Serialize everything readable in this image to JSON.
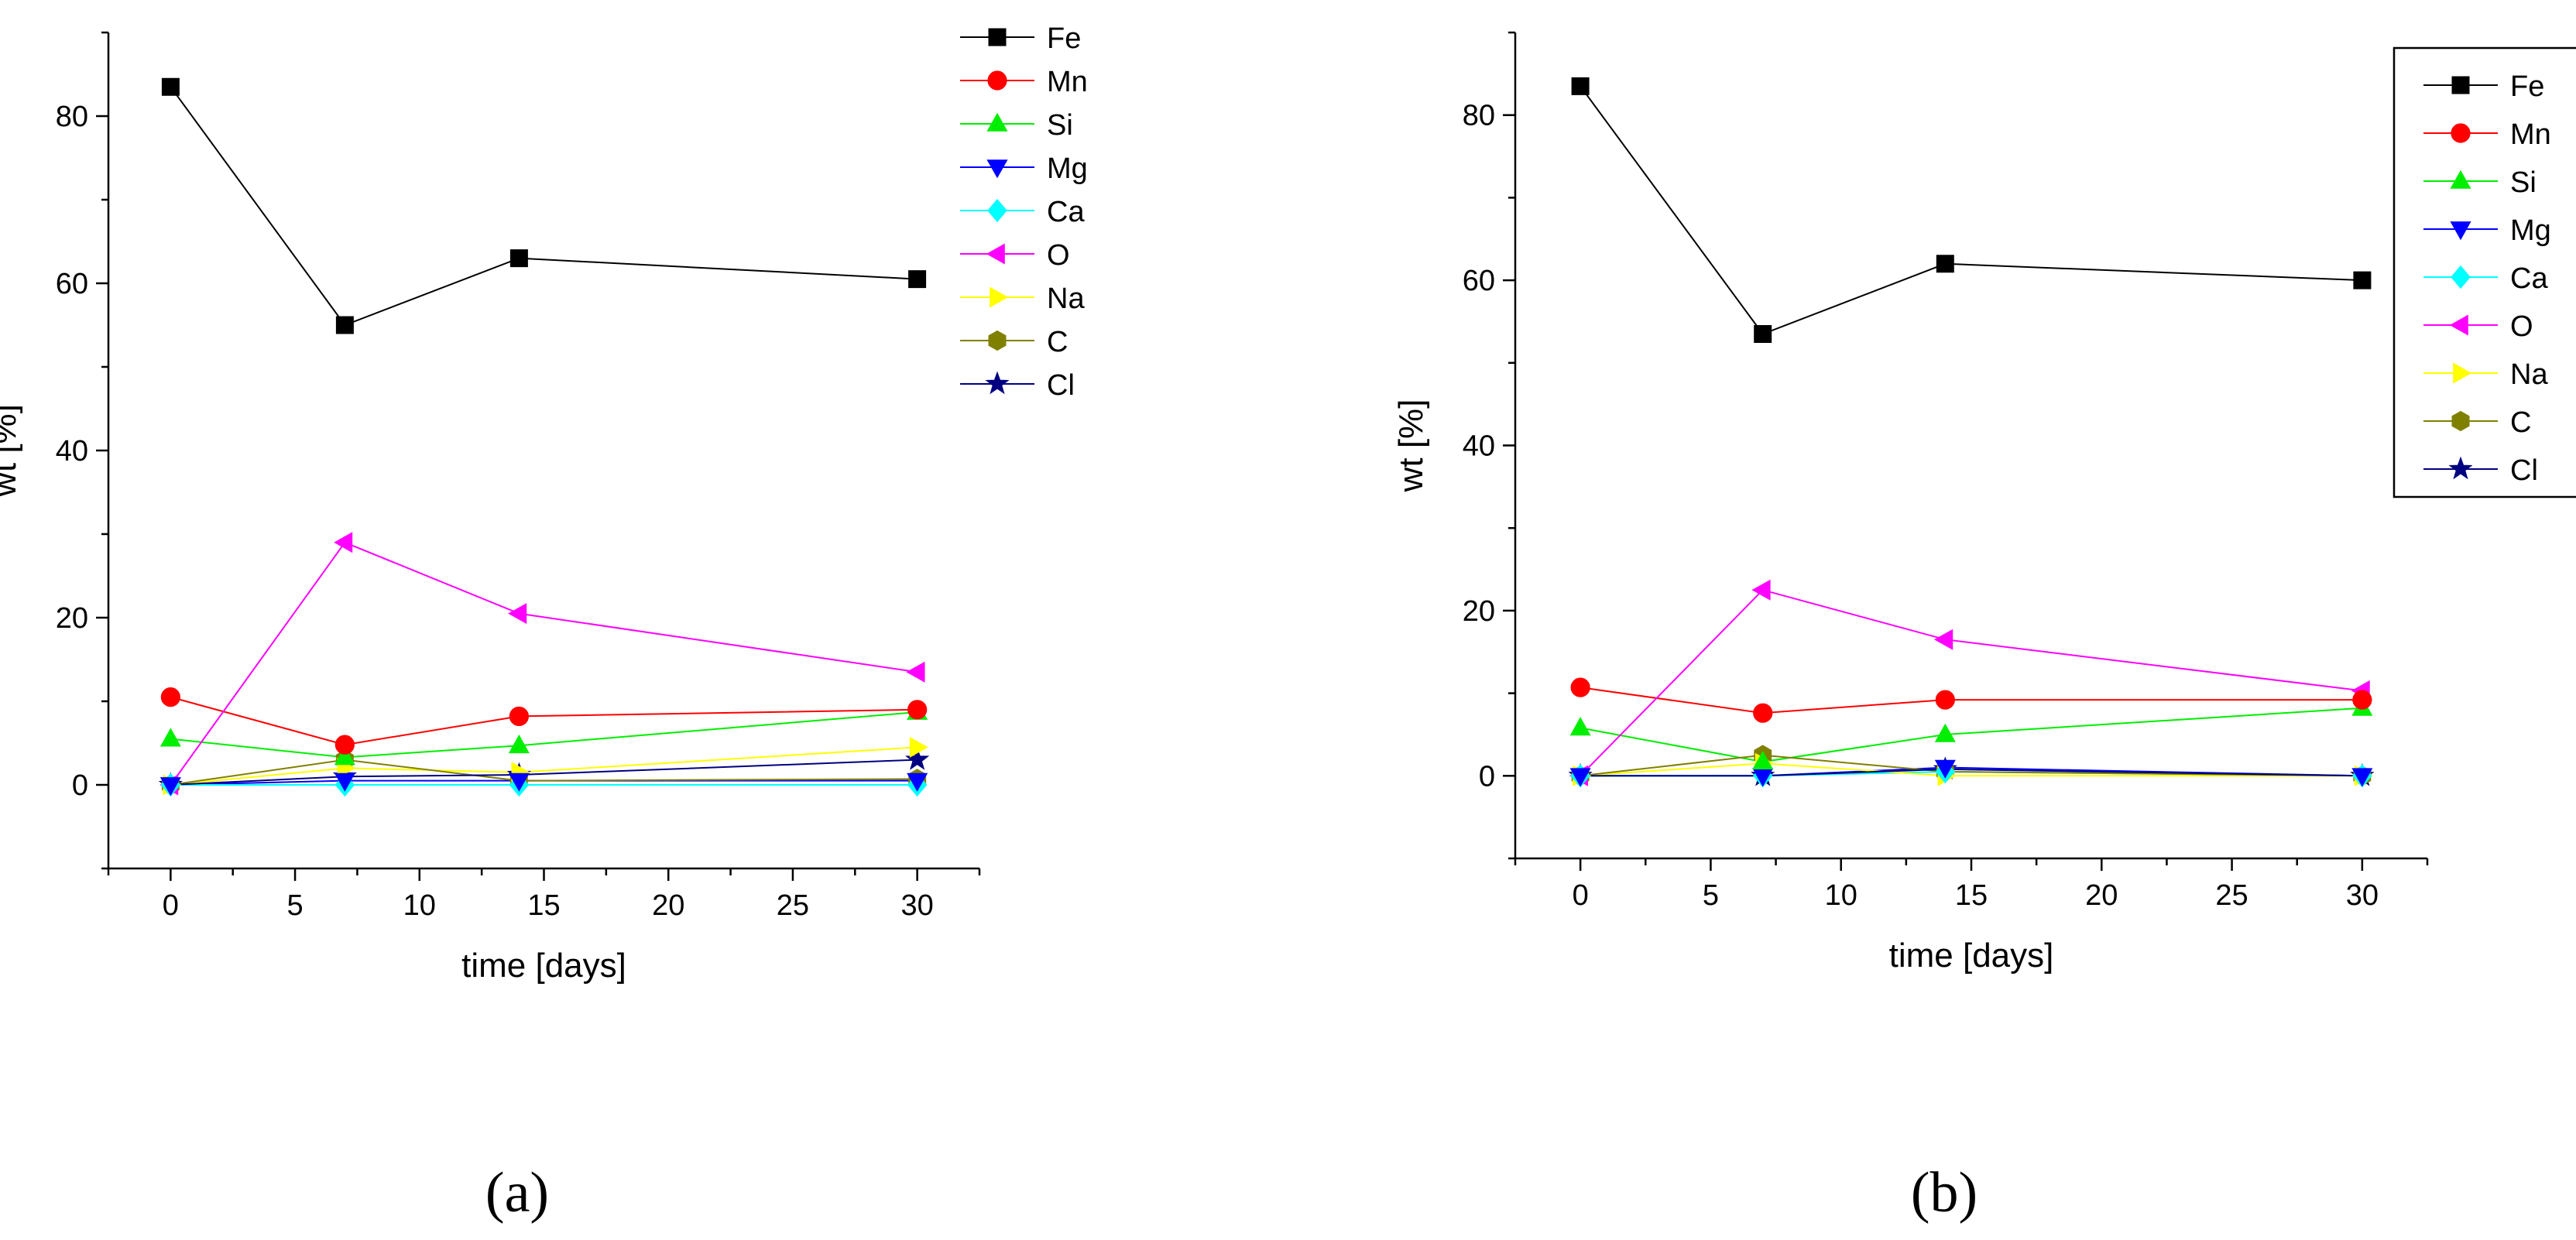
{
  "figure": {
    "panel_labels": [
      "(a)",
      "(b)"
    ]
  },
  "chart_data": [
    {
      "type": "line",
      "panel": "(a)",
      "xlabel": "time [days]",
      "ylabel": "wt [%]",
      "xlim": [
        -2.5,
        32.5
      ],
      "ylim": [
        -10,
        90
      ],
      "xticks": [
        0,
        5,
        10,
        15,
        20,
        25,
        30
      ],
      "yticks": [
        0,
        20,
        40,
        60,
        80
      ],
      "x": [
        0,
        7,
        14,
        30
      ],
      "legend_frame": false,
      "legend_position": "top-right",
      "series": [
        {
          "name": "Fe",
          "color": "#000000",
          "marker": "square",
          "values": [
            83.5,
            55,
            63,
            60.5
          ]
        },
        {
          "name": "Mn",
          "color": "#ff0000",
          "marker": "circle",
          "values": [
            10.5,
            4.8,
            8.2,
            9
          ]
        },
        {
          "name": "Si",
          "color": "#00ee00",
          "marker": "triangle-up",
          "values": [
            5.5,
            3.3,
            4.7,
            8.7
          ]
        },
        {
          "name": "Mg",
          "color": "#0000ff",
          "marker": "triangle-down",
          "values": [
            0,
            0.5,
            0.5,
            0.5
          ]
        },
        {
          "name": "Ca",
          "color": "#00ffff",
          "marker": "diamond",
          "values": [
            0,
            0,
            0,
            0
          ]
        },
        {
          "name": "O",
          "color": "#ff00ff",
          "marker": "triangle-left",
          "values": [
            0,
            29,
            20.5,
            13.5
          ]
        },
        {
          "name": "Na",
          "color": "#ffff00",
          "marker": "triangle-right",
          "values": [
            0,
            2,
            1.5,
            4.5
          ]
        },
        {
          "name": "C",
          "color": "#808000",
          "marker": "hexagon",
          "values": [
            0,
            3,
            0.5,
            0.7
          ]
        },
        {
          "name": "Cl",
          "color": "#000080",
          "marker": "star",
          "values": [
            0,
            1,
            1.2,
            3
          ]
        }
      ]
    },
    {
      "type": "line",
      "panel": "(b)",
      "xlabel": "time [days]",
      "ylabel": "wt [%]",
      "xlim": [
        -2.5,
        32.5
      ],
      "ylim": [
        -10,
        90
      ],
      "xticks": [
        0,
        5,
        10,
        15,
        20,
        25,
        30
      ],
      "yticks": [
        0,
        20,
        40,
        60,
        80
      ],
      "x": [
        0,
        7,
        14,
        30
      ],
      "legend_frame": true,
      "legend_position": "top-right",
      "series": [
        {
          "name": "Fe",
          "color": "#000000",
          "marker": "square",
          "values": [
            83.5,
            53.5,
            62,
            60
          ]
        },
        {
          "name": "Mn",
          "color": "#ff0000",
          "marker": "circle",
          "values": [
            10.7,
            7.6,
            9.2,
            9.2
          ]
        },
        {
          "name": "Si",
          "color": "#00ee00",
          "marker": "triangle-up",
          "values": [
            5.8,
            1.7,
            5,
            8.2
          ]
        },
        {
          "name": "Mg",
          "color": "#0000ff",
          "marker": "triangle-down",
          "values": [
            0,
            0,
            1,
            0
          ]
        },
        {
          "name": "Ca",
          "color": "#00ffff",
          "marker": "diamond",
          "values": [
            0,
            0,
            0.5,
            0
          ]
        },
        {
          "name": "O",
          "color": "#ff00ff",
          "marker": "triangle-left",
          "values": [
            0,
            22.5,
            16.5,
            10.3
          ]
        },
        {
          "name": "Na",
          "color": "#ffff00",
          "marker": "triangle-right",
          "values": [
            0,
            1.5,
            0,
            0
          ]
        },
        {
          "name": "C",
          "color": "#808000",
          "marker": "hexagon",
          "values": [
            0,
            2.5,
            0.5,
            0
          ]
        },
        {
          "name": "Cl",
          "color": "#000080",
          "marker": "star",
          "values": [
            0,
            0,
            0.8,
            0
          ]
        }
      ]
    }
  ]
}
